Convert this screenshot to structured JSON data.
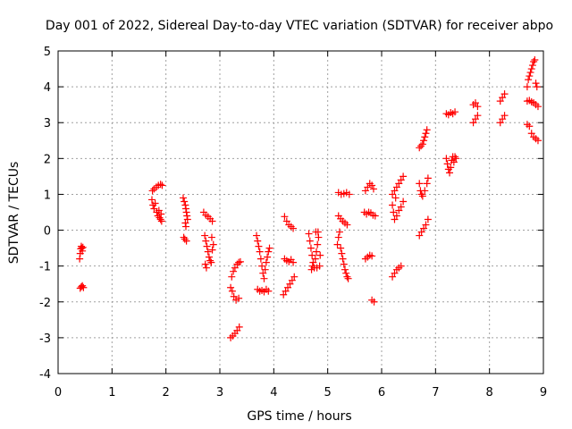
{
  "chart_data": {
    "type": "scatter",
    "title": "Day 001 of 2022, Sidereal Day-to-day VTEC variation (SDTVAR) for receiver abpo",
    "xlabel": "GPS time / hours",
    "ylabel": "SDTVAR / TECUs",
    "xlim": [
      0,
      9
    ],
    "ylim": [
      -4,
      5
    ],
    "x_ticks": [
      "0",
      "1",
      "2",
      "3",
      "4",
      "5",
      "6",
      "7",
      "8",
      "9"
    ],
    "y_ticks": [
      "-4",
      "-3",
      "-2",
      "-1",
      "0",
      "1",
      "2",
      "3",
      "4",
      "5"
    ],
    "grid": true,
    "legend": "none",
    "marker": "plus",
    "color": "#ff0000",
    "series": [
      {
        "points": [
          [
            0.4,
            -0.8
          ],
          [
            0.41,
            -0.65
          ],
          [
            0.42,
            -0.52
          ],
          [
            0.43,
            -0.45
          ],
          [
            0.44,
            -0.5
          ],
          [
            0.45,
            -0.58
          ],
          [
            0.46,
            -0.48
          ],
          [
            0.41,
            -1.62
          ],
          [
            0.43,
            -1.58
          ],
          [
            0.45,
            -1.55
          ],
          [
            0.47,
            -1.6
          ],
          [
            1.75,
            1.1
          ],
          [
            1.78,
            1.15
          ],
          [
            1.82,
            1.2
          ],
          [
            1.86,
            1.25
          ],
          [
            1.9,
            1.28
          ],
          [
            1.93,
            1.25
          ],
          [
            1.74,
            0.85
          ],
          [
            1.76,
            0.7
          ],
          [
            1.78,
            0.6
          ],
          [
            1.8,
            0.75
          ],
          [
            1.83,
            0.5
          ],
          [
            1.85,
            0.4
          ],
          [
            1.88,
            0.35
          ],
          [
            1.9,
            0.3
          ],
          [
            1.92,
            0.25
          ],
          [
            1.87,
            0.55
          ],
          [
            1.91,
            0.45
          ],
          [
            2.32,
            0.9
          ],
          [
            2.34,
            0.8
          ],
          [
            2.36,
            0.7
          ],
          [
            2.37,
            0.6
          ],
          [
            2.38,
            0.5
          ],
          [
            2.39,
            0.4
          ],
          [
            2.4,
            0.3
          ],
          [
            2.36,
            0.2
          ],
          [
            2.37,
            0.1
          ],
          [
            2.33,
            -0.2
          ],
          [
            2.35,
            -0.25
          ],
          [
            2.38,
            -0.3
          ],
          [
            2.7,
            0.5
          ],
          [
            2.74,
            0.42
          ],
          [
            2.78,
            0.38
          ],
          [
            2.82,
            0.32
          ],
          [
            2.86,
            0.25
          ],
          [
            2.72,
            -0.15
          ],
          [
            2.74,
            -0.3
          ],
          [
            2.76,
            -0.45
          ],
          [
            2.78,
            -0.6
          ],
          [
            2.8,
            -0.75
          ],
          [
            2.82,
            -0.85
          ],
          [
            2.84,
            -0.9
          ],
          [
            2.86,
            -0.55
          ],
          [
            2.88,
            -0.4
          ],
          [
            2.73,
            -0.95
          ],
          [
            2.75,
            -1.05
          ],
          [
            2.85,
            -0.2
          ],
          [
            3.2,
            -3.0
          ],
          [
            3.24,
            -2.95
          ],
          [
            3.28,
            -2.88
          ],
          [
            3.32,
            -2.8
          ],
          [
            3.36,
            -2.7
          ],
          [
            3.2,
            -1.6
          ],
          [
            3.23,
            -1.7
          ],
          [
            3.26,
            -1.85
          ],
          [
            3.3,
            -1.95
          ],
          [
            3.35,
            -1.9
          ],
          [
            3.22,
            -1.3
          ],
          [
            3.25,
            -1.15
          ],
          [
            3.28,
            -1.05
          ],
          [
            3.32,
            -0.95
          ],
          [
            3.35,
            -0.9
          ],
          [
            3.38,
            -0.88
          ],
          [
            3.68,
            -0.15
          ],
          [
            3.7,
            -0.3
          ],
          [
            3.72,
            -0.45
          ],
          [
            3.74,
            -0.6
          ],
          [
            3.76,
            -0.8
          ],
          [
            3.78,
            -1.0
          ],
          [
            3.8,
            -1.2
          ],
          [
            3.82,
            -1.35
          ],
          [
            3.84,
            -1.1
          ],
          [
            3.86,
            -0.9
          ],
          [
            3.88,
            -0.75
          ],
          [
            3.9,
            -0.6
          ],
          [
            3.92,
            -0.5
          ],
          [
            3.7,
            -1.65
          ],
          [
            3.74,
            -1.7
          ],
          [
            3.78,
            -1.68
          ],
          [
            3.82,
            -1.72
          ],
          [
            3.86,
            -1.65
          ],
          [
            3.9,
            -1.7
          ],
          [
            4.2,
            0.38
          ],
          [
            4.24,
            0.25
          ],
          [
            4.28,
            0.15
          ],
          [
            4.32,
            0.1
          ],
          [
            4.36,
            0.05
          ],
          [
            4.2,
            -0.8
          ],
          [
            4.24,
            -0.85
          ],
          [
            4.28,
            -0.88
          ],
          [
            4.32,
            -0.82
          ],
          [
            4.36,
            -0.9
          ],
          [
            4.18,
            -1.8
          ],
          [
            4.22,
            -1.7
          ],
          [
            4.26,
            -1.6
          ],
          [
            4.3,
            -1.5
          ],
          [
            4.34,
            -1.4
          ],
          [
            4.38,
            -1.3
          ],
          [
            4.65,
            -0.1
          ],
          [
            4.67,
            -0.3
          ],
          [
            4.69,
            -0.5
          ],
          [
            4.71,
            -0.7
          ],
          [
            4.73,
            -0.9
          ],
          [
            4.75,
            -1.05
          ],
          [
            4.77,
            -0.8
          ],
          [
            4.79,
            -0.6
          ],
          [
            4.81,
            -0.4
          ],
          [
            4.83,
            -0.2
          ],
          [
            4.78,
            -0.05
          ],
          [
            4.82,
            -0.05
          ],
          [
            4.7,
            -1.1
          ],
          [
            4.72,
            -1.0
          ],
          [
            4.85,
            -1.0
          ],
          [
            4.8,
            -1.05
          ],
          [
            4.86,
            -0.7
          ],
          [
            5.2,
            1.05
          ],
          [
            5.25,
            1.0
          ],
          [
            5.3,
            1.02
          ],
          [
            5.35,
            1.05
          ],
          [
            5.4,
            1.0
          ],
          [
            5.2,
            0.4
          ],
          [
            5.24,
            0.32
          ],
          [
            5.28,
            0.25
          ],
          [
            5.32,
            0.2
          ],
          [
            5.36,
            0.15
          ],
          [
            5.18,
            -0.4
          ],
          [
            5.2,
            -0.2
          ],
          [
            5.22,
            -0.05
          ],
          [
            5.24,
            -0.5
          ],
          [
            5.26,
            -0.65
          ],
          [
            5.28,
            -0.8
          ],
          [
            5.3,
            -0.95
          ],
          [
            5.32,
            -1.1
          ],
          [
            5.34,
            -1.2
          ],
          [
            5.36,
            -1.3
          ],
          [
            5.38,
            -1.35
          ],
          [
            5.7,
            1.1
          ],
          [
            5.74,
            1.2
          ],
          [
            5.78,
            1.3
          ],
          [
            5.82,
            1.25
          ],
          [
            5.85,
            1.15
          ],
          [
            5.68,
            0.5
          ],
          [
            5.72,
            0.45
          ],
          [
            5.76,
            0.5
          ],
          [
            5.8,
            0.48
          ],
          [
            5.84,
            0.42
          ],
          [
            5.88,
            0.4
          ],
          [
            5.7,
            -0.8
          ],
          [
            5.74,
            -0.75
          ],
          [
            5.78,
            -0.7
          ],
          [
            5.82,
            -0.72
          ],
          [
            5.82,
            -1.95
          ],
          [
            5.86,
            -2.0
          ],
          [
            6.2,
            1.0
          ],
          [
            6.24,
            1.1
          ],
          [
            6.28,
            1.2
          ],
          [
            6.32,
            1.3
          ],
          [
            6.36,
            1.4
          ],
          [
            6.4,
            1.5
          ],
          [
            6.2,
            0.7
          ],
          [
            6.22,
            0.5
          ],
          [
            6.24,
            0.3
          ],
          [
            6.28,
            0.4
          ],
          [
            6.32,
            0.55
          ],
          [
            6.36,
            0.65
          ],
          [
            6.4,
            0.8
          ],
          [
            6.26,
            0.9
          ],
          [
            6.2,
            -1.3
          ],
          [
            6.24,
            -1.2
          ],
          [
            6.28,
            -1.1
          ],
          [
            6.32,
            -1.05
          ],
          [
            6.36,
            -1.0
          ],
          [
            6.7,
            2.3
          ],
          [
            6.73,
            2.35
          ],
          [
            6.76,
            2.4
          ],
          [
            6.78,
            2.5
          ],
          [
            6.8,
            2.6
          ],
          [
            6.82,
            2.7
          ],
          [
            6.84,
            2.8
          ],
          [
            6.7,
            1.3
          ],
          [
            6.72,
            1.1
          ],
          [
            6.74,
            1.0
          ],
          [
            6.76,
            0.95
          ],
          [
            6.8,
            1.1
          ],
          [
            6.84,
            1.3
          ],
          [
            6.86,
            1.45
          ],
          [
            6.7,
            -0.15
          ],
          [
            6.74,
            -0.05
          ],
          [
            6.78,
            0.05
          ],
          [
            6.82,
            0.15
          ],
          [
            6.86,
            0.3
          ],
          [
            7.2,
            3.25
          ],
          [
            7.24,
            3.22
          ],
          [
            7.28,
            3.28
          ],
          [
            7.32,
            3.25
          ],
          [
            7.36,
            3.3
          ],
          [
            7.2,
            2.0
          ],
          [
            7.22,
            1.85
          ],
          [
            7.24,
            1.7
          ],
          [
            7.26,
            1.6
          ],
          [
            7.28,
            1.75
          ],
          [
            7.3,
            1.95
          ],
          [
            7.32,
            2.05
          ],
          [
            7.34,
            1.9
          ],
          [
            7.36,
            2.05
          ],
          [
            7.38,
            2.0
          ],
          [
            7.7,
            3.5
          ],
          [
            7.74,
            3.55
          ],
          [
            7.78,
            3.45
          ],
          [
            7.7,
            3.0
          ],
          [
            7.74,
            3.1
          ],
          [
            7.78,
            3.2
          ],
          [
            8.2,
            3.6
          ],
          [
            8.24,
            3.7
          ],
          [
            8.28,
            3.8
          ],
          [
            8.2,
            3.0
          ],
          [
            8.24,
            3.1
          ],
          [
            8.28,
            3.2
          ],
          [
            8.7,
            4.0
          ],
          [
            8.72,
            4.2
          ],
          [
            8.74,
            4.3
          ],
          [
            8.76,
            4.4
          ],
          [
            8.78,
            4.5
          ],
          [
            8.8,
            4.6
          ],
          [
            8.82,
            4.7
          ],
          [
            8.84,
            4.75
          ],
          [
            8.86,
            4.1
          ],
          [
            8.88,
            4.0
          ],
          [
            8.7,
            3.6
          ],
          [
            8.74,
            3.62
          ],
          [
            8.78,
            3.58
          ],
          [
            8.82,
            3.55
          ],
          [
            8.86,
            3.5
          ],
          [
            8.9,
            3.45
          ],
          [
            8.7,
            2.95
          ],
          [
            8.74,
            2.9
          ],
          [
            8.78,
            2.7
          ],
          [
            8.82,
            2.6
          ],
          [
            8.86,
            2.55
          ],
          [
            8.9,
            2.5
          ]
        ]
      }
    ]
  }
}
